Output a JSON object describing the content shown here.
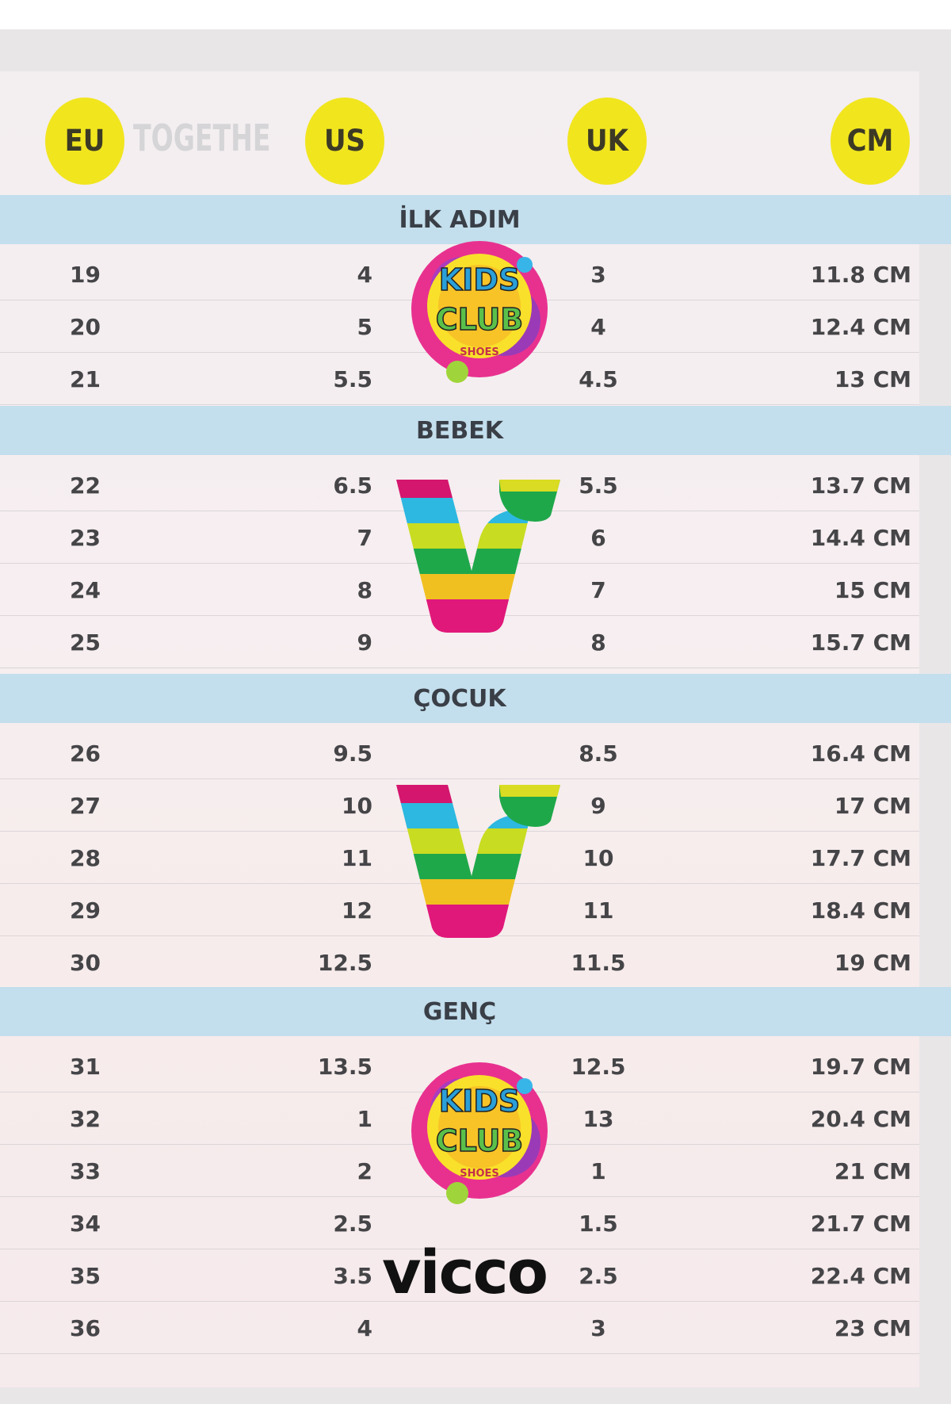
{
  "headers": [
    "EU",
    "US",
    "UK",
    "CM"
  ],
  "background_text": "TOGETHE",
  "header_color": "#f1e51e",
  "band_color": "#c3deec",
  "sections": [
    {
      "title": "İLK ADIM",
      "rows": [
        [
          "19",
          "4",
          "3",
          "11.8 CM"
        ],
        [
          "20",
          "5",
          "4",
          "12.4 CM"
        ],
        [
          "21",
          "5.5",
          "4.5",
          "13 CM"
        ]
      ]
    },
    {
      "title": "BEBEK",
      "rows": [
        [
          "22",
          "6.5",
          "5.5",
          "13.7 CM"
        ],
        [
          "23",
          "7",
          "6",
          "14.4 CM"
        ],
        [
          "24",
          "8",
          "7",
          "15 CM"
        ],
        [
          "25",
          "9",
          "8",
          "15.7 CM"
        ]
      ]
    },
    {
      "title": "ÇOCUK",
      "rows": [
        [
          "26",
          "9.5",
          "8.5",
          "16.4 CM"
        ],
        [
          "27",
          "10",
          "9",
          "17 CM"
        ],
        [
          "28",
          "11",
          "10",
          "17.7 CM"
        ],
        [
          "29",
          "12",
          "11",
          "18.4 CM"
        ],
        [
          "30",
          "12.5",
          "11.5",
          "19 CM"
        ]
      ]
    },
    {
      "title": "GENÇ",
      "rows": [
        [
          "31",
          "13.5",
          "12.5",
          "19.7 CM"
        ],
        [
          "32",
          "1",
          "13",
          "20.4 CM"
        ],
        [
          "33",
          "2",
          "1",
          "21 CM"
        ],
        [
          "34",
          "2.5",
          "1.5",
          "21.7 CM"
        ],
        [
          "35",
          "3.5",
          "2.5",
          "22.4 CM"
        ],
        [
          "36",
          "4",
          "3",
          "23 CM"
        ]
      ]
    }
  ],
  "logos": {
    "kids_club_top": "KIDS",
    "kids_club_bottom": "CLUB",
    "kids_club_sub": "SHOES",
    "vicco": "vicco"
  }
}
